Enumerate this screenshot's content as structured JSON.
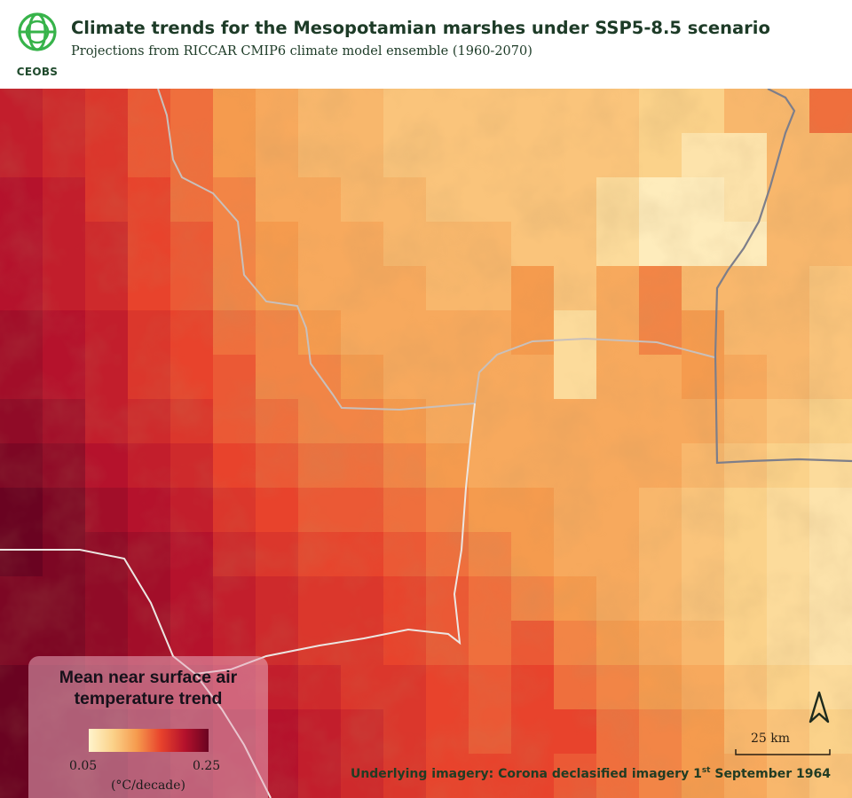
{
  "header": {
    "logo_text": "CEOBS",
    "title": "Climate trends for the Mesopotamian marshes under SSP5-8.5 scenario",
    "subtitle": "Projections from RICCAR CMIP6 climate model ensemble (1960-2070)"
  },
  "legend": {
    "title_line1": "Mean near surface air",
    "title_line2": "temperature trend",
    "min_label": "0.05",
    "max_label": "0.25",
    "units": "(°C/decade)",
    "min_value": 0.05,
    "max_value": 0.25,
    "colors": [
      "#fff4cc",
      "#fbd28a",
      "#f59b4e",
      "#e8432c",
      "#b5122c",
      "#6a0321"
    ]
  },
  "scale_bar": {
    "label": "25 km"
  },
  "north_arrow": {
    "icon": "north-arrow-icon"
  },
  "credit": {
    "prefix": "Underlying imagery: Corona declasified imagery 1",
    "superscript": "st",
    "suffix": " September 1964"
  },
  "grid": {
    "rows": [
      [
        0.2,
        0.19,
        0.18,
        0.16,
        0.15,
        0.13,
        0.12,
        0.11,
        0.11,
        0.1,
        0.1,
        0.1,
        0.1,
        0.1,
        0.1,
        0.09,
        0.09,
        0.11,
        0.11,
        0.15
      ],
      [
        0.2,
        0.19,
        0.18,
        0.16,
        0.15,
        0.13,
        0.12,
        0.11,
        0.11,
        0.1,
        0.1,
        0.1,
        0.1,
        0.1,
        0.1,
        0.09,
        0.07,
        0.07,
        0.11,
        0.11
      ],
      [
        0.21,
        0.2,
        0.18,
        0.17,
        0.15,
        0.14,
        0.12,
        0.12,
        0.11,
        0.11,
        0.1,
        0.1,
        0.1,
        0.1,
        0.08,
        0.06,
        0.06,
        0.07,
        0.11,
        0.11
      ],
      [
        0.21,
        0.2,
        0.19,
        0.17,
        0.16,
        0.14,
        0.13,
        0.12,
        0.12,
        0.11,
        0.11,
        0.11,
        0.1,
        0.1,
        0.08,
        0.06,
        0.06,
        0.06,
        0.11,
        0.11
      ],
      [
        0.21,
        0.2,
        0.19,
        0.17,
        0.16,
        0.14,
        0.13,
        0.12,
        0.12,
        0.12,
        0.11,
        0.11,
        0.13,
        0.1,
        0.12,
        0.14,
        0.11,
        0.11,
        0.11,
        0.1
      ],
      [
        0.22,
        0.21,
        0.2,
        0.18,
        0.17,
        0.15,
        0.14,
        0.13,
        0.12,
        0.12,
        0.12,
        0.12,
        0.13,
        0.08,
        0.12,
        0.14,
        0.13,
        0.11,
        0.11,
        0.1
      ],
      [
        0.22,
        0.21,
        0.2,
        0.18,
        0.17,
        0.16,
        0.14,
        0.14,
        0.13,
        0.12,
        0.12,
        0.12,
        0.12,
        0.08,
        0.12,
        0.12,
        0.13,
        0.12,
        0.11,
        0.1
      ],
      [
        0.23,
        0.22,
        0.2,
        0.19,
        0.18,
        0.16,
        0.15,
        0.14,
        0.14,
        0.13,
        0.12,
        0.12,
        0.12,
        0.12,
        0.12,
        0.12,
        0.12,
        0.11,
        0.1,
        0.09
      ],
      [
        0.24,
        0.23,
        0.21,
        0.2,
        0.19,
        0.17,
        0.16,
        0.15,
        0.15,
        0.14,
        0.13,
        0.12,
        0.12,
        0.12,
        0.12,
        0.12,
        0.11,
        0.1,
        0.09,
        0.08
      ],
      [
        0.25,
        0.24,
        0.22,
        0.21,
        0.2,
        0.18,
        0.17,
        0.16,
        0.16,
        0.15,
        0.14,
        0.13,
        0.13,
        0.12,
        0.12,
        0.11,
        0.1,
        0.09,
        0.08,
        0.07
      ],
      [
        0.25,
        0.24,
        0.23,
        0.22,
        0.21,
        0.19,
        0.18,
        0.17,
        0.17,
        0.16,
        0.15,
        0.14,
        0.13,
        0.12,
        0.12,
        0.11,
        0.1,
        0.09,
        0.08,
        0.07
      ],
      [
        0.24,
        0.24,
        0.23,
        0.22,
        0.21,
        0.2,
        0.19,
        0.18,
        0.18,
        0.17,
        0.16,
        0.15,
        0.14,
        0.13,
        0.12,
        0.11,
        0.1,
        0.09,
        0.08,
        0.07
      ],
      [
        0.24,
        0.24,
        0.23,
        0.22,
        0.21,
        0.2,
        0.19,
        0.18,
        0.18,
        0.17,
        0.16,
        0.15,
        0.16,
        0.14,
        0.13,
        0.12,
        0.11,
        0.09,
        0.08,
        0.07
      ],
      [
        0.25,
        0.25,
        0.24,
        0.23,
        0.22,
        0.21,
        0.2,
        0.19,
        0.18,
        0.18,
        0.17,
        0.16,
        0.17,
        0.15,
        0.14,
        0.13,
        0.12,
        0.1,
        0.09,
        0.08
      ],
      [
        0.25,
        0.25,
        0.25,
        0.24,
        0.23,
        0.22,
        0.21,
        0.2,
        0.19,
        0.18,
        0.17,
        0.16,
        0.17,
        0.17,
        0.15,
        0.14,
        0.13,
        0.11,
        0.1,
        0.09
      ],
      [
        0.25,
        0.25,
        0.25,
        0.24,
        0.23,
        0.22,
        0.21,
        0.2,
        0.19,
        0.18,
        0.17,
        0.17,
        0.17,
        0.16,
        0.15,
        0.14,
        0.13,
        0.12,
        0.11,
        0.1
      ]
    ]
  }
}
